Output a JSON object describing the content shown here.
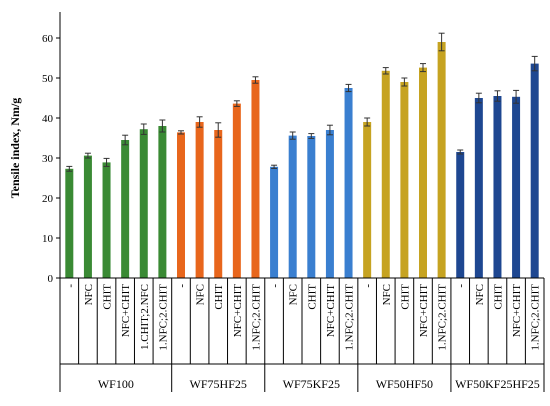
{
  "chart_data": {
    "type": "bar",
    "ylabel": "Tensile index, Nm/g",
    "xlabel": "",
    "ylim": [
      0,
      65
    ],
    "yticks": [
      0,
      10,
      20,
      30,
      40,
      50,
      60
    ],
    "grid": false,
    "groups": [
      {
        "name": "WF100",
        "color": "#3a8a34",
        "bars": [
          {
            "category": "-",
            "value": 27.3,
            "error": 0.6
          },
          {
            "category": "NFC",
            "value": 30.6,
            "error": 0.6
          },
          {
            "category": "CHIT",
            "value": 28.9,
            "error": 1.0
          },
          {
            "category": "NFC+CHIT",
            "value": 34.5,
            "error": 1.2
          },
          {
            "category": "1.CHIT;2.NFC",
            "value": 37.2,
            "error": 1.3
          },
          {
            "category": "1.NFC;2.CHIT",
            "value": 38.0,
            "error": 1.5
          }
        ]
      },
      {
        "name": "WF75HF25",
        "color": "#e8661c",
        "bars": [
          {
            "category": "-",
            "value": 36.4,
            "error": 0.4
          },
          {
            "category": "NFC",
            "value": 39.0,
            "error": 1.3
          },
          {
            "category": "CHIT",
            "value": 37.0,
            "error": 1.8
          },
          {
            "category": "NFC+CHIT",
            "value": 43.6,
            "error": 0.7
          },
          {
            "category": "1.NFC;2.CHIT",
            "value": 49.5,
            "error": 0.8
          }
        ]
      },
      {
        "name": "WF75KF25",
        "color": "#3a7fd0",
        "bars": [
          {
            "category": "-",
            "value": 27.8,
            "error": 0.4
          },
          {
            "category": "NFC",
            "value": 35.6,
            "error": 0.9
          },
          {
            "category": "CHIT",
            "value": 35.5,
            "error": 0.6
          },
          {
            "category": "NFC+CHIT",
            "value": 37.0,
            "error": 1.2
          },
          {
            "category": "1.NFC;2.CHIT",
            "value": 47.5,
            "error": 0.9
          }
        ]
      },
      {
        "name": "WF50HF50",
        "color": "#c6a321",
        "bars": [
          {
            "category": "-",
            "value": 39.0,
            "error": 1.0
          },
          {
            "category": "NFC",
            "value": 51.8,
            "error": 0.8
          },
          {
            "category": "CHIT",
            "value": 49.0,
            "error": 1.0
          },
          {
            "category": "NFC+CHIT",
            "value": 52.6,
            "error": 1.0
          },
          {
            "category": "1.NFC;2.CHIT",
            "value": 59.0,
            "error": 2.2
          }
        ]
      },
      {
        "name": "WF50KF25HF25",
        "color": "#1e4791",
        "bars": [
          {
            "category": "-",
            "value": 31.5,
            "error": 0.5
          },
          {
            "category": "NFC",
            "value": 45.0,
            "error": 1.2
          },
          {
            "category": "CHIT",
            "value": 45.5,
            "error": 1.3
          },
          {
            "category": "NFC+CHIT",
            "value": 45.3,
            "error": 1.6
          },
          {
            "category": "1.NFC;2.CHIT",
            "value": 53.6,
            "error": 1.8
          }
        ]
      }
    ]
  }
}
